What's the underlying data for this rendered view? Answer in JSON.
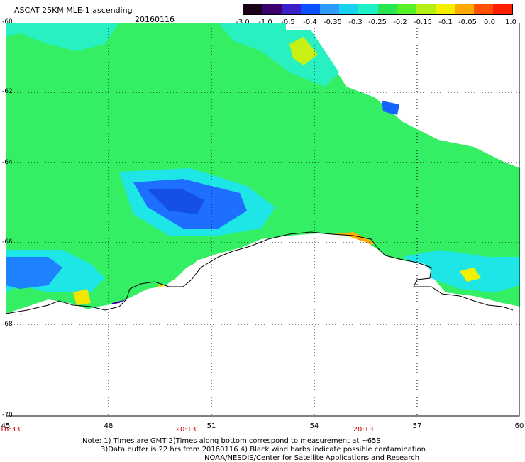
{
  "header": {
    "title": "ASCAT 25KM MLE-1 ascending",
    "date": "20160116"
  },
  "colorbar": {
    "ticks": [
      "-3.0",
      "-1.0",
      "-0.5",
      "-0.4",
      "-0.35",
      "-0.3",
      "-0.25",
      "-0.2",
      "-0.15",
      "-0.1",
      "-0.05",
      "0.0",
      "1.0"
    ],
    "colors": [
      "#1a0018",
      "#3c006e",
      "#3a1fc8",
      "#0a50ff",
      "#2d9bff",
      "#19d2f0",
      "#1ef0c8",
      "#28e650",
      "#55f028",
      "#b4f014",
      "#f5f000",
      "#ffaa00",
      "#ff5000",
      "#ff1e00"
    ]
  },
  "axes": {
    "lat_labels": [
      "-60",
      "-62",
      "-64",
      "-66",
      "-68",
      "-70"
    ],
    "lon_labels": [
      "45",
      "48",
      "51",
      "54",
      "57",
      "60"
    ],
    "time_labels": [
      "18:33",
      "20:13",
      "20:13"
    ]
  },
  "footer": {
    "note1": "Note: 1) Times are GMT 2)Times along bottom correspond to measurement at ~65S",
    "note2": "3)Data buffer is 22 hrs from 20160116 4) Black wind barbs indicate possible contamination",
    "note3": "NOAA/NESDIS/Center for Satellite Applications and Research"
  }
}
